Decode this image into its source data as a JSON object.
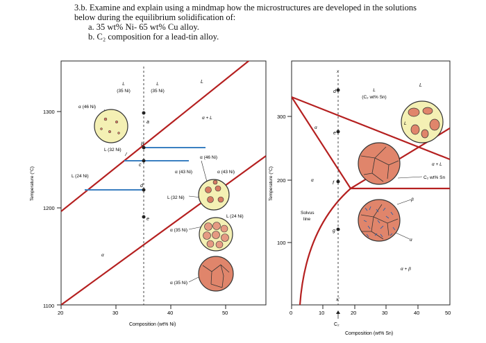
{
  "question": {
    "line1": "3.b. Examine and explain using a mindmap how the microstructures are developed in the solutions",
    "line2": "below during the equilibrium solidification of:",
    "item_a": "a.   35 wt% Ni- 65 wt% Cu alloy.",
    "item_b": "b.   C₂ composition for a lead-tin alloy."
  },
  "cu_ni": {
    "ylabel": "Temperature (°C)",
    "xlabel": "Composition (wt% Ni)",
    "yticks": [
      "1300",
      "1200",
      "1100"
    ],
    "xticks": [
      "20",
      "30",
      "40",
      "50"
    ],
    "labels": {
      "L": "L",
      "L35a": "L",
      "L35b": "(35 Ni)",
      "L35c": "L",
      "L35d": "(35 Ni)",
      "a46": "α (46 Ni)",
      "L32": "L (32 Ni)",
      "L24": "L (24 Ni)",
      "a46b": "α (46 Ni)",
      "a43": "α (43 Ni)",
      "a43b": "α (43 Ni)",
      "L32b": "L (32 Ni)",
      "L24b": "L (24 Ni)",
      "a35": "α (35 Ni)",
      "a35b": "α (35 Ni)",
      "pa": "a",
      "pb": "b",
      "pc": "c",
      "pd": "d",
      "pe": "e",
      "alpha_plus_L": "α + L",
      "alpha": "α"
    }
  },
  "pb_sn": {
    "ylabel": "Temperature (°C)",
    "xlabel": "Composition (wt% Sn)",
    "yticks": [
      "300",
      "200",
      "100"
    ],
    "xticks": [
      "0",
      "10",
      "20",
      "30",
      "40",
      "50"
    ],
    "c2_label": "C₂",
    "labels": {
      "L": "L",
      "Lc2a": "L",
      "Lc2b": "(C₂ wt% Sn)",
      "alpha": "α",
      "alpha_plus_L": "α + L",
      "c2_sn": "C₂ wt% Sn",
      "solvus1": "Solvus",
      "solvus2": "line",
      "beta": "β",
      "alpha2": "α",
      "alpha_beta": "α + β",
      "pd": "d",
      "pe": "e",
      "pf": "f",
      "pg": "g",
      "L_circle": "L",
      "x": "x",
      "xp": "x′"
    }
  }
}
